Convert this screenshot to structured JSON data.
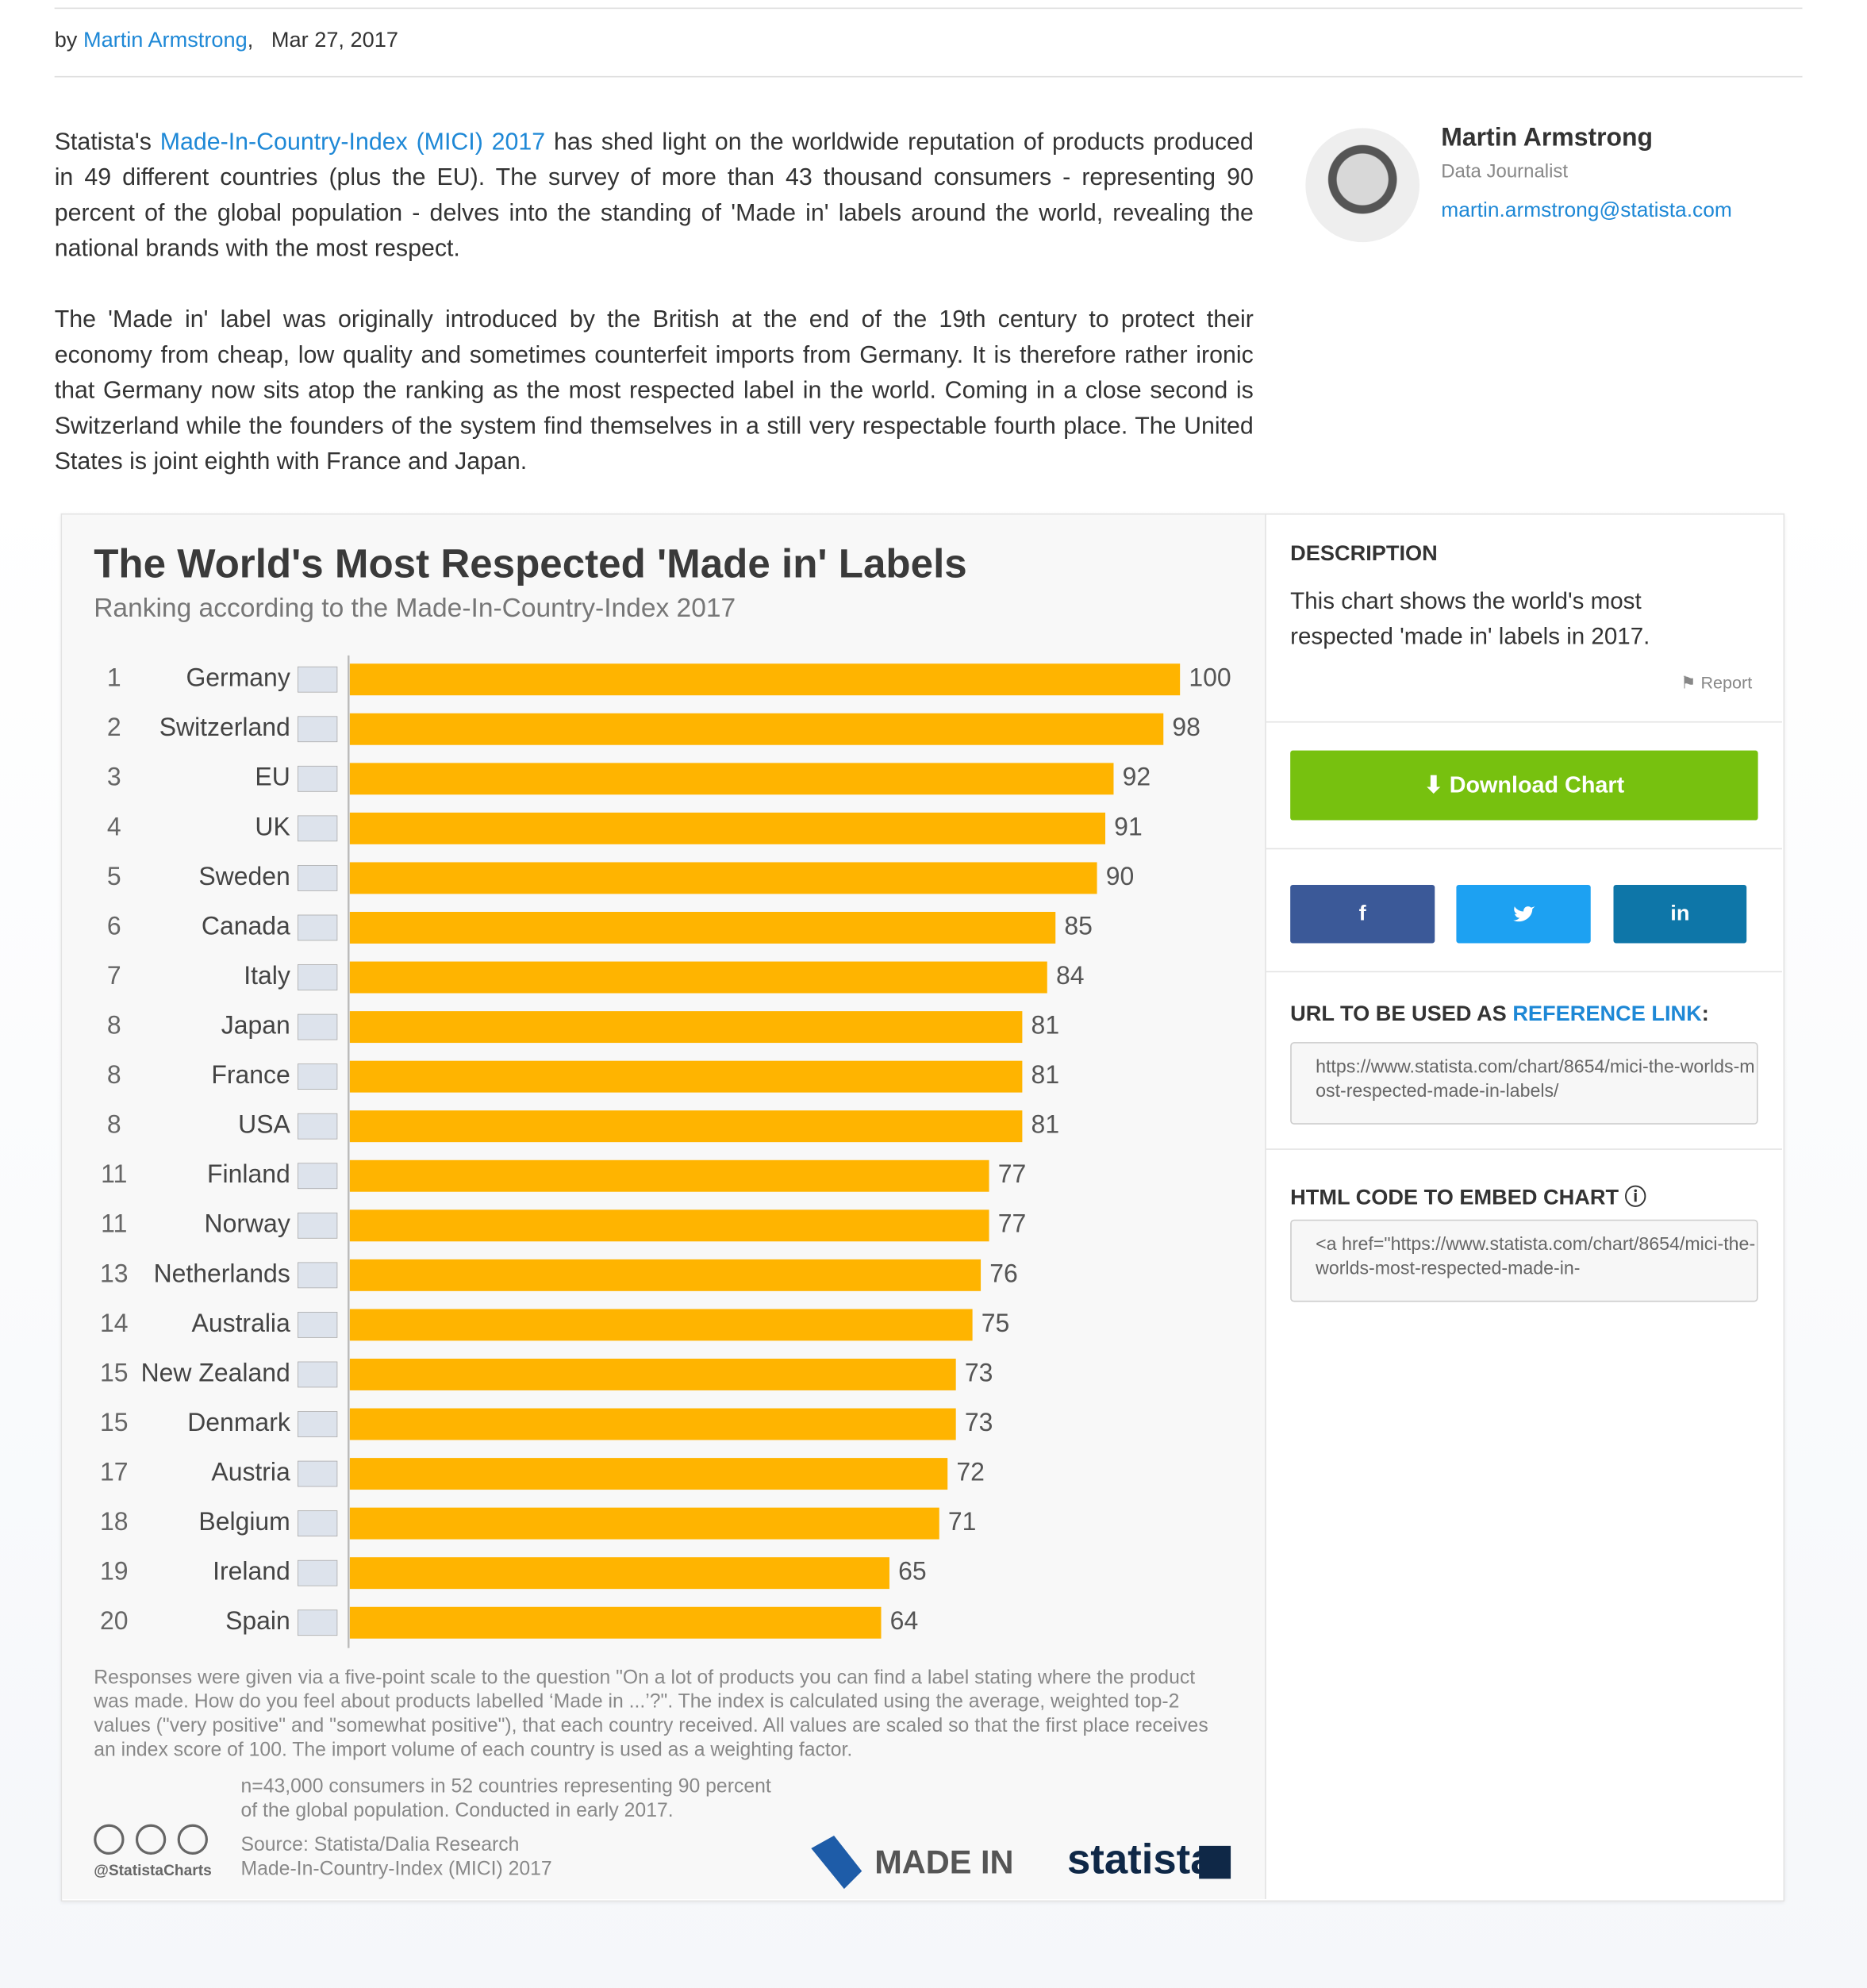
{
  "byline": {
    "prefix": "by",
    "author": "Martin Armstrong",
    "date": "Mar 27, 2017"
  },
  "article": {
    "p1": {
      "before": "Statista's",
      "link": "Made-In-Country-Index (MICI) 2017",
      "after": "has shed light on the worldwide reputation of products produced in 49 different countries (plus the EU). The survey of more than 43 thousand consumers - representing 90 percent of the global population - delves into the standing of 'Made in' labels around the world, revealing the national brands with the most respect."
    },
    "p2": "The 'Made in' label was originally introduced by the British at the end of the 19th century to protect their economy from cheap, low quality and sometimes counterfeit imports from Germany. It is therefore rather ironic that Germany now sits atop the ranking as the most respected label in the world. Coming in a close second is Switzerland while the founders of the system find themselves in a still very respectable fourth place. The United States is joint eighth with France and Japan."
  },
  "author_card": {
    "name": "Martin Armstrong",
    "role": "Data Journalist",
    "email": "martin.armstrong@statista.com"
  },
  "chart_data": {
    "type": "bar",
    "orientation": "horizontal",
    "title": "The World's Most Respected 'Made in' Labels",
    "subtitle": "Ranking according to the Made-In-Country-Index 2017",
    "ranks": [
      1,
      2,
      3,
      4,
      5,
      6,
      7,
      8,
      8,
      8,
      11,
      11,
      13,
      14,
      15,
      15,
      17,
      18,
      19,
      20
    ],
    "categories": [
      "Germany",
      "Switzerland",
      "EU",
      "UK",
      "Sweden",
      "Canada",
      "Italy",
      "Japan",
      "France",
      "USA",
      "Finland",
      "Norway",
      "Netherlands",
      "Australia",
      "New Zealand",
      "Denmark",
      "Austria",
      "Belgium",
      "Ireland",
      "Spain"
    ],
    "values": [
      100,
      98,
      92,
      91,
      90,
      85,
      84,
      81,
      81,
      81,
      77,
      77,
      76,
      75,
      73,
      73,
      72,
      71,
      65,
      64
    ],
    "color": "#ffb400",
    "xlim": [
      0,
      100
    ],
    "note": "Responses were given via a five-point scale to the question \"On a lot of products you can find a label stating where the product was made. How do you feel about products labelled ‘Made in ...’?\". The index is calculated using the average, weighted top-2 values (\"very positive\" and \"somewhat positive\"), that each country received. All values are scaled so that the first place receives an index score of 100. The import volume of each country is used as a weighting factor.",
    "sample": "n=43,000 consumers in 52 countries representing 90 percent of the global population. Conducted in early 2017.",
    "source": [
      "Source: Statista/Dalia Research",
      "Made-In-Country-Index (MICI) 2017"
    ],
    "handle": "@StatistaCharts",
    "logos": [
      "MADE IN",
      "statista"
    ]
  },
  "sidebar": {
    "description_heading": "DESCRIPTION",
    "description": "This chart shows the world's most respected 'made in' labels in 2017.",
    "report": "Report",
    "download": "Download Chart",
    "share": [
      "f",
      "in"
    ],
    "url_heading": {
      "before": "URL TO BE USED AS",
      "link": "REFERENCE LINK",
      "after": ":"
    },
    "url": "https://www.statista.com/chart/8654/mici-the-worlds-most-respected-made-in-labels/",
    "embed_heading": "HTML CODE TO EMBED CHART",
    "embed_code": "<a href=\"https://www.statista.com/chart/8654/mici-the-worlds-most-respected-made-in-"
  }
}
